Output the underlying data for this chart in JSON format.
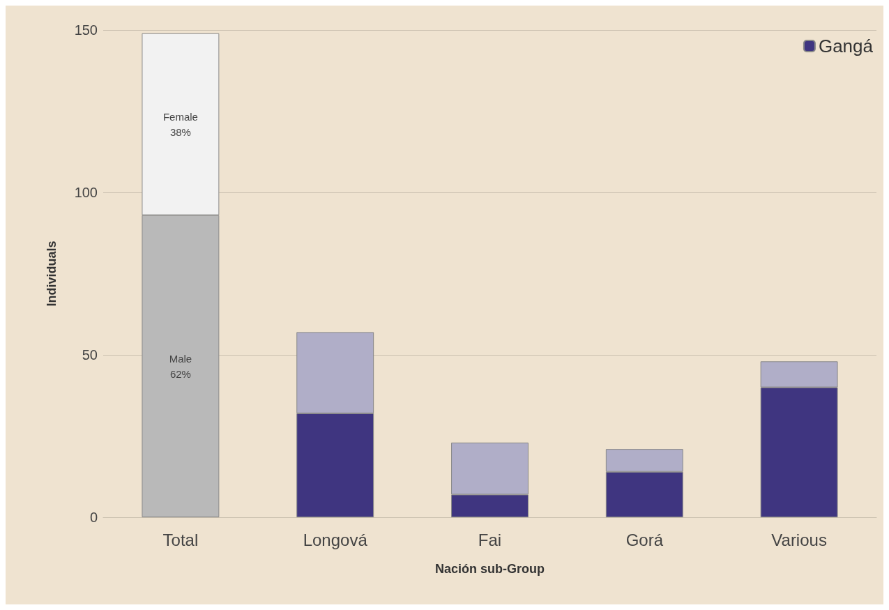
{
  "chart_data": {
    "type": "bar",
    "stacked": true,
    "xlabel": "Nación sub-Group",
    "ylabel": "Individuals",
    "categories": [
      "Total",
      "Longová",
      "Fai",
      "Gorá",
      "Various"
    ],
    "series": [
      {
        "color": "#b9b9b9",
        "values": [
          93,
          null,
          null,
          null,
          null
        ],
        "value_labels": [
          "Male\n62%",
          null,
          null,
          null,
          null
        ]
      },
      {
        "name": "Gangá",
        "color": "#3f3580",
        "values": [
          null,
          32,
          7,
          14,
          40
        ]
      },
      {
        "color": "#f2f2f2",
        "values": [
          56,
          null,
          null,
          null,
          null
        ],
        "value_labels": [
          "Female\n38%",
          null,
          null,
          null,
          null
        ]
      },
      {
        "color": "#b0aec8",
        "values": [
          null,
          25,
          16,
          7,
          8
        ]
      }
    ],
    "ylim": [
      0,
      150
    ],
    "yticks": [
      0,
      50,
      100,
      150
    ],
    "grid": "y",
    "legend": "top right"
  }
}
